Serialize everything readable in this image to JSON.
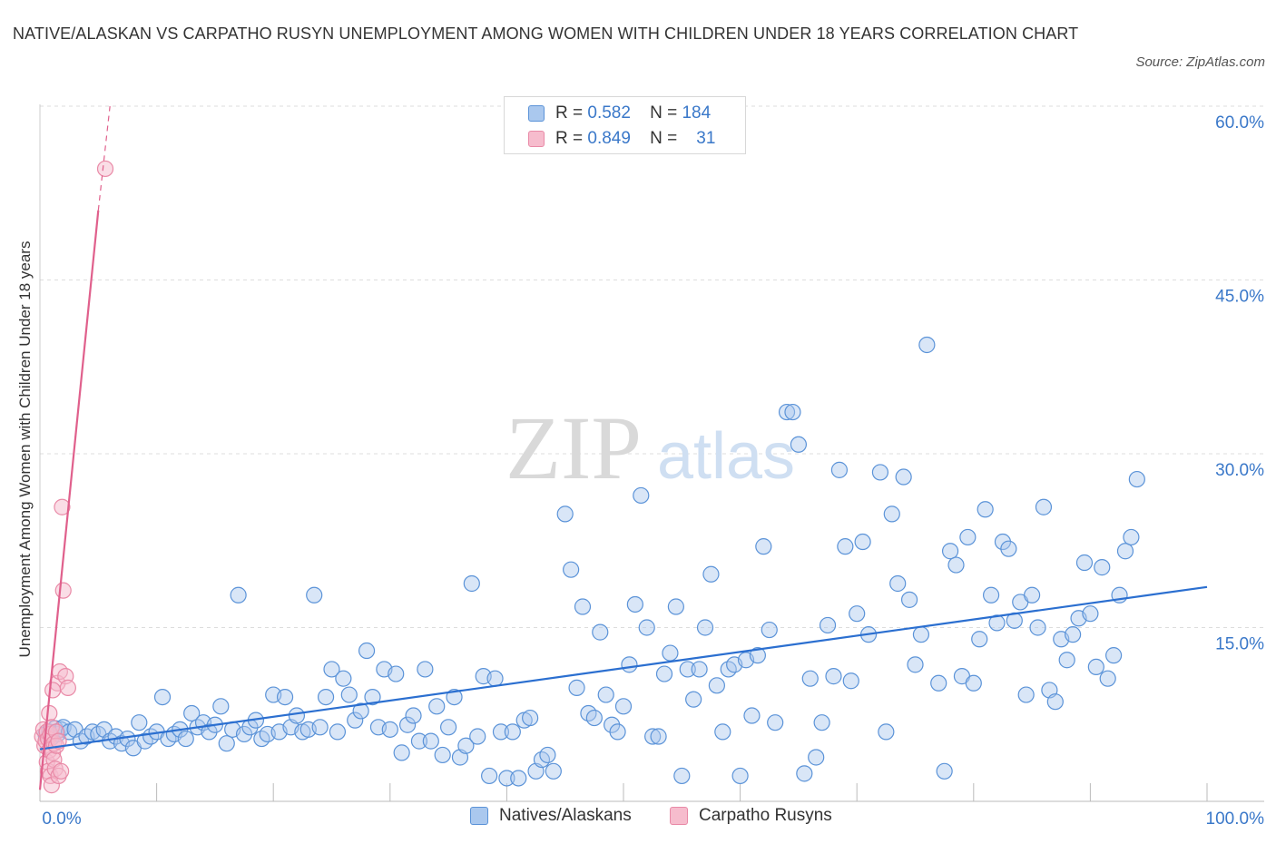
{
  "title": "NATIVE/ALASKAN VS CARPATHO RUSYN UNEMPLOYMENT AMONG WOMEN WITH CHILDREN UNDER 18 YEARS CORRELATION CHART",
  "source": "Source: ZipAtlas.com",
  "watermark": {
    "zip": "ZIP",
    "atlas": "atlas"
  },
  "colors": {
    "blue_fill": "#aac8ee",
    "blue_stroke": "#5b93d8",
    "blue_line": "#2b6fd0",
    "pink_fill": "#f6bccd",
    "pink_stroke": "#e98aa7",
    "pink_line": "#e0608c",
    "tick_text": "#3a78c9",
    "grid": "#dddddd"
  },
  "stats": {
    "blue": {
      "r_label": "R =",
      "r": "0.582",
      "n_label": "N =",
      "n": "184"
    },
    "pink": {
      "r_label": "R =",
      "r": "0.849",
      "n_label": "N =",
      "n": "31"
    }
  },
  "legend": {
    "blue": "Natives/Alaskans",
    "pink": "Carpatho Rusyns"
  },
  "chart_data": {
    "type": "scatter",
    "title": "NATIVE/ALASKAN VS CARPATHO RUSYN UNEMPLOYMENT AMONG WOMEN WITH CHILDREN UNDER 18 YEARS CORRELATION CHART",
    "xlabel": "",
    "ylabel": "Unemployment Among Women with Children Under 18 years",
    "xlim": [
      0,
      100
    ],
    "ylim": [
      0,
      60
    ],
    "x_tick_labels": [
      "0.0%",
      "100.0%"
    ],
    "y_ticks": [
      15,
      30,
      45,
      60
    ],
    "y_tick_labels": [
      "15.0%",
      "30.0%",
      "45.0%",
      "60.0%"
    ],
    "grid": true,
    "legend_position": "bottom",
    "series": [
      {
        "name": "Natives/Alaskans",
        "color": "#5b93d8",
        "trend": {
          "x": [
            0,
            100
          ],
          "y": [
            4.5,
            18.5
          ]
        },
        "points": [
          [
            0.5,
            5.8
          ],
          [
            0.8,
            6.0
          ],
          [
            1.0,
            5.5
          ],
          [
            1.3,
            6.3
          ],
          [
            1.5,
            5.8
          ],
          [
            1.8,
            6.2
          ],
          [
            2.0,
            6.4
          ],
          [
            2.5,
            6.0
          ],
          [
            3.0,
            6.2
          ],
          [
            3.5,
            5.2
          ],
          [
            4.0,
            5.6
          ],
          [
            4.5,
            6.0
          ],
          [
            5.0,
            5.8
          ],
          [
            5.5,
            6.2
          ],
          [
            6.0,
            5.2
          ],
          [
            6.5,
            5.6
          ],
          [
            7.0,
            5.0
          ],
          [
            7.5,
            5.4
          ],
          [
            8.0,
            4.6
          ],
          [
            8.5,
            6.8
          ],
          [
            9.0,
            5.2
          ],
          [
            9.5,
            5.6
          ],
          [
            10.0,
            6.0
          ],
          [
            10.5,
            9.0
          ],
          [
            11.0,
            5.4
          ],
          [
            11.5,
            5.8
          ],
          [
            12.0,
            6.2
          ],
          [
            12.5,
            5.4
          ],
          [
            13.0,
            7.6
          ],
          [
            13.5,
            6.4
          ],
          [
            14.0,
            6.8
          ],
          [
            14.5,
            6.0
          ],
          [
            15.0,
            6.6
          ],
          [
            15.5,
            8.2
          ],
          [
            16.0,
            5.0
          ],
          [
            16.5,
            6.2
          ],
          [
            17.0,
            17.8
          ],
          [
            17.5,
            5.8
          ],
          [
            18.0,
            6.4
          ],
          [
            18.5,
            7.0
          ],
          [
            19.0,
            5.4
          ],
          [
            19.5,
            5.8
          ],
          [
            20.0,
            9.2
          ],
          [
            20.5,
            6.0
          ],
          [
            21.0,
            9.0
          ],
          [
            21.5,
            6.4
          ],
          [
            22.0,
            7.4
          ],
          [
            22.5,
            6.0
          ],
          [
            23.0,
            6.2
          ],
          [
            23.5,
            17.8
          ],
          [
            24.0,
            6.4
          ],
          [
            24.5,
            9.0
          ],
          [
            25.0,
            11.4
          ],
          [
            25.5,
            6.0
          ],
          [
            26.0,
            10.6
          ],
          [
            26.5,
            9.2
          ],
          [
            27.0,
            7.0
          ],
          [
            27.5,
            7.8
          ],
          [
            28.0,
            13.0
          ],
          [
            28.5,
            9.0
          ],
          [
            29.0,
            6.4
          ],
          [
            29.5,
            11.4
          ],
          [
            30.0,
            6.2
          ],
          [
            30.5,
            11.0
          ],
          [
            31.0,
            4.2
          ],
          [
            31.5,
            6.6
          ],
          [
            32.0,
            7.4
          ],
          [
            32.5,
            5.2
          ],
          [
            33.0,
            11.4
          ],
          [
            33.5,
            5.2
          ],
          [
            34.0,
            8.2
          ],
          [
            34.5,
            4.0
          ],
          [
            35.0,
            6.4
          ],
          [
            35.5,
            9.0
          ],
          [
            36.0,
            3.8
          ],
          [
            36.5,
            4.8
          ],
          [
            37.0,
            18.8
          ],
          [
            37.5,
            5.6
          ],
          [
            38.0,
            10.8
          ],
          [
            38.5,
            2.2
          ],
          [
            39.0,
            10.6
          ],
          [
            39.5,
            6.0
          ],
          [
            40.0,
            2.0
          ],
          [
            40.5,
            6.0
          ],
          [
            41.0,
            2.0
          ],
          [
            41.5,
            7.0
          ],
          [
            42.0,
            7.2
          ],
          [
            42.5,
            2.6
          ],
          [
            43.0,
            3.6
          ],
          [
            43.5,
            4.0
          ],
          [
            44.0,
            2.6
          ],
          [
            45.0,
            24.8
          ],
          [
            45.5,
            20.0
          ],
          [
            46.0,
            9.8
          ],
          [
            46.5,
            16.8
          ],
          [
            47.0,
            7.6
          ],
          [
            47.5,
            7.2
          ],
          [
            48.0,
            14.6
          ],
          [
            48.5,
            9.2
          ],
          [
            49.0,
            6.6
          ],
          [
            49.5,
            6.0
          ],
          [
            50.0,
            8.2
          ],
          [
            50.5,
            11.8
          ],
          [
            51.0,
            17.0
          ],
          [
            51.5,
            26.4
          ],
          [
            52.0,
            15.0
          ],
          [
            52.5,
            5.6
          ],
          [
            53.0,
            5.6
          ],
          [
            53.5,
            11.0
          ],
          [
            54.0,
            12.8
          ],
          [
            54.5,
            16.8
          ],
          [
            55.0,
            2.2
          ],
          [
            55.5,
            11.4
          ],
          [
            56.0,
            8.8
          ],
          [
            56.5,
            11.4
          ],
          [
            57.0,
            15.0
          ],
          [
            57.5,
            19.6
          ],
          [
            58.0,
            10.0
          ],
          [
            58.5,
            6.0
          ],
          [
            59.0,
            11.4
          ],
          [
            59.5,
            11.8
          ],
          [
            60.0,
            2.2
          ],
          [
            60.5,
            12.2
          ],
          [
            61.0,
            7.4
          ],
          [
            61.5,
            12.6
          ],
          [
            62.0,
            22.0
          ],
          [
            62.5,
            14.8
          ],
          [
            63.0,
            6.8
          ],
          [
            64.0,
            33.6
          ],
          [
            64.5,
            33.6
          ],
          [
            65.0,
            30.8
          ],
          [
            65.5,
            2.4
          ],
          [
            66.0,
            10.6
          ],
          [
            66.5,
            3.8
          ],
          [
            67.0,
            6.8
          ],
          [
            67.5,
            15.2
          ],
          [
            68.0,
            10.8
          ],
          [
            68.5,
            28.6
          ],
          [
            69.0,
            22.0
          ],
          [
            69.5,
            10.4
          ],
          [
            70.0,
            16.2
          ],
          [
            70.5,
            22.4
          ],
          [
            71.0,
            14.4
          ],
          [
            72.0,
            28.4
          ],
          [
            72.5,
            6.0
          ],
          [
            73.0,
            24.8
          ],
          [
            73.5,
            18.8
          ],
          [
            74.0,
            28.0
          ],
          [
            74.5,
            17.4
          ],
          [
            75.0,
            11.8
          ],
          [
            75.5,
            14.4
          ],
          [
            76.0,
            39.4
          ],
          [
            77.0,
            10.2
          ],
          [
            77.5,
            2.6
          ],
          [
            78.0,
            21.6
          ],
          [
            78.5,
            20.4
          ],
          [
            79.0,
            10.8
          ],
          [
            79.5,
            22.8
          ],
          [
            80.0,
            10.2
          ],
          [
            80.5,
            14.0
          ],
          [
            81.0,
            25.2
          ],
          [
            81.5,
            17.8
          ],
          [
            82.0,
            15.4
          ],
          [
            82.5,
            22.4
          ],
          [
            83.0,
            21.8
          ],
          [
            83.5,
            15.6
          ],
          [
            84.0,
            17.2
          ],
          [
            84.5,
            9.2
          ],
          [
            85.0,
            17.8
          ],
          [
            85.5,
            15.0
          ],
          [
            86.0,
            25.4
          ],
          [
            86.5,
            9.6
          ],
          [
            87.0,
            8.6
          ],
          [
            87.5,
            14.0
          ],
          [
            88.0,
            12.2
          ],
          [
            88.5,
            14.4
          ],
          [
            89.0,
            15.8
          ],
          [
            89.5,
            20.6
          ],
          [
            90.0,
            16.2
          ],
          [
            90.5,
            11.6
          ],
          [
            91.0,
            20.2
          ],
          [
            91.5,
            10.6
          ],
          [
            92.0,
            12.6
          ],
          [
            92.5,
            17.8
          ],
          [
            93.0,
            21.6
          ],
          [
            93.5,
            22.8
          ],
          [
            94.0,
            27.8
          ]
        ]
      },
      {
        "name": "Carpatho Rusyns",
        "color": "#e98aa7",
        "trend": {
          "x": [
            0,
            5.0
          ],
          "y": [
            1.0,
            51.0
          ]
        },
        "trend_dashed": {
          "x": [
            5.0,
            6.0
          ],
          "y": [
            51.0,
            60.0
          ]
        },
        "points": [
          [
            0.2,
            5.6
          ],
          [
            0.3,
            6.2
          ],
          [
            0.4,
            4.8
          ],
          [
            0.5,
            5.2
          ],
          [
            0.6,
            3.4
          ],
          [
            0.6,
            6.0
          ],
          [
            0.7,
            2.6
          ],
          [
            0.7,
            5.4
          ],
          [
            0.8,
            7.6
          ],
          [
            0.8,
            4.4
          ],
          [
            0.9,
            5.8
          ],
          [
            0.9,
            2.2
          ],
          [
            1.0,
            6.4
          ],
          [
            1.0,
            1.4
          ],
          [
            1.1,
            4.2
          ],
          [
            1.2,
            3.6
          ],
          [
            1.2,
            5.0
          ],
          [
            1.3,
            2.8
          ],
          [
            1.4,
            6.0
          ],
          [
            1.4,
            4.8
          ],
          [
            1.5,
            10.2
          ],
          [
            1.6,
            2.2
          ],
          [
            1.6,
            5.2
          ],
          [
            1.7,
            11.2
          ],
          [
            1.8,
            2.6
          ],
          [
            1.9,
            25.4
          ],
          [
            2.0,
            18.2
          ],
          [
            2.2,
            10.8
          ],
          [
            2.4,
            9.8
          ],
          [
            1.1,
            9.6
          ],
          [
            5.6,
            54.6
          ]
        ]
      }
    ]
  }
}
